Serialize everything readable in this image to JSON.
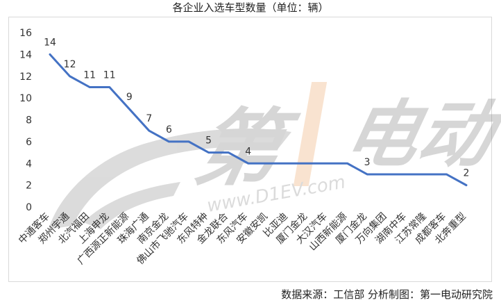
{
  "chart_data": {
    "type": "line",
    "title": "各企业入选车型数量（单位：辆）",
    "xlabel": "",
    "ylabel": "",
    "ylim": [
      0,
      16
    ],
    "yticks": [
      0,
      2,
      4,
      6,
      8,
      10,
      12,
      14,
      16
    ],
    "grid": false,
    "legend": "none",
    "line_color": "#4472C4",
    "categories": [
      "中通客车",
      "郑州宇通",
      "北汽福田",
      "上海申龙",
      "广西源正新能源",
      "珠海广通",
      "南京金龙",
      "佛山市飞驰汽车",
      "东风特种",
      "金龙联合",
      "东风汽车",
      "安徽安凯",
      "比亚迪",
      "厦门金龙",
      "大汉汽车",
      "山西新能源",
      "厦门金龙",
      "万向集团",
      "湖南中车",
      "江苏常隆",
      "成都客车",
      "北奔重型"
    ],
    "values": [
      14,
      12,
      11,
      11,
      9,
      7,
      6,
      6,
      5,
      5,
      4,
      4,
      4,
      4,
      4,
      4,
      3,
      3,
      3,
      3,
      3,
      2
    ],
    "data_labels": [
      "14",
      "12",
      "11",
      "11",
      "9",
      "7",
      "6",
      "",
      "5",
      "",
      "4",
      "",
      "",
      "",
      "",
      "",
      "3",
      "",
      "",
      "",
      "",
      "2"
    ]
  },
  "footer": {
    "source_text": "数据来源：工信部   分析制图：第一电动研究院"
  },
  "watermark": {
    "text": "www.D1EV.com",
    "logo_text": "第1电动"
  }
}
